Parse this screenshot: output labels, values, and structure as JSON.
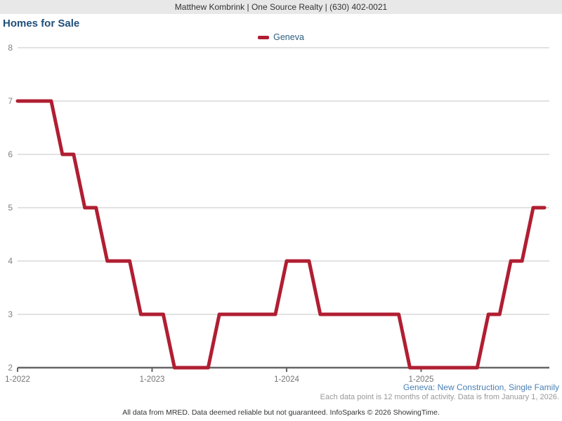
{
  "header": {
    "agent_line": "Matthew Kombrink | One Source Realty | (630) 402-0021"
  },
  "chart": {
    "title": "Homes for Sale"
  },
  "legend": {
    "items": [
      {
        "label": "Geneva",
        "color": "#b01e32"
      }
    ]
  },
  "footer": {
    "series_description": "Geneva: New Construction, Single Family",
    "data_note": "Each data point is 12 months of activity. Data is from January 1, 2026.",
    "attribution": "All data from MRED. Data deemed reliable but not guaranteed. InfoSparks © 2026 ShowingTime."
  },
  "colors": {
    "series_red": "#b01e32",
    "title_blue": "#1f4e79",
    "legend_blue": "#2e5f7f",
    "footnote_blue": "#4a80b5",
    "gridline_gray": "#c6c6c6",
    "axis_gray": "#666666",
    "tick_label_gray": "#737373",
    "y_label_gray": "#808080",
    "header_bg": "#e8e8e8"
  },
  "chart_data": {
    "type": "line",
    "title": "Homes for Sale",
    "xlabel": "",
    "ylabel": "",
    "ylim": [
      2,
      8
    ],
    "y_ticks": [
      2,
      3,
      4,
      5,
      6,
      7,
      8
    ],
    "grid": true,
    "legend_position": "top-center",
    "line_style": "monthly step line",
    "x": [
      "1-2022",
      "2-2022",
      "3-2022",
      "4-2022",
      "5-2022",
      "6-2022",
      "7-2022",
      "8-2022",
      "9-2022",
      "10-2022",
      "11-2022",
      "12-2022",
      "1-2023",
      "2-2023",
      "3-2023",
      "4-2023",
      "5-2023",
      "6-2023",
      "7-2023",
      "8-2023",
      "9-2023",
      "10-2023",
      "11-2023",
      "12-2023",
      "1-2024",
      "2-2024",
      "3-2024",
      "4-2024",
      "5-2024",
      "6-2024",
      "7-2024",
      "8-2024",
      "9-2024",
      "10-2024",
      "11-2024",
      "12-2024",
      "1-2025",
      "2-2025",
      "3-2025",
      "4-2025",
      "5-2025",
      "6-2025",
      "7-2025",
      "8-2025",
      "9-2025",
      "10-2025",
      "11-2025",
      "12-2025"
    ],
    "x_tick_indices": [
      0,
      12,
      24,
      36
    ],
    "x_tick_labels": [
      "1-2022",
      "1-2023",
      "1-2024",
      "1-2025"
    ],
    "series": [
      {
        "name": "Geneva",
        "color": "#b01e32",
        "values": [
          7,
          7,
          7,
          7,
          6,
          6,
          5,
          5,
          4,
          4,
          4,
          3,
          3,
          3,
          2,
          2,
          2,
          2,
          3,
          3,
          3,
          3,
          3,
          3,
          4,
          4,
          4,
          3,
          3,
          3,
          3,
          3,
          3,
          3,
          3,
          2,
          2,
          2,
          2,
          2,
          2,
          2,
          3,
          3,
          4,
          4,
          5,
          5
        ]
      }
    ]
  }
}
